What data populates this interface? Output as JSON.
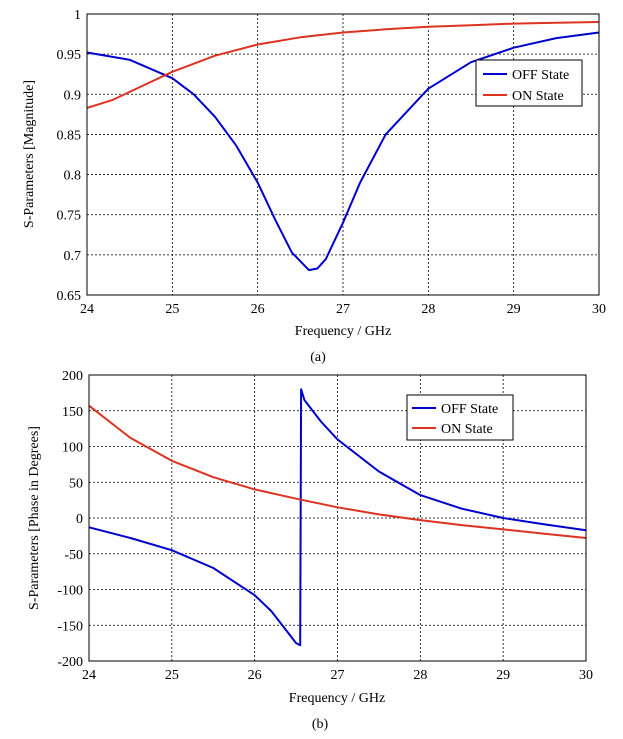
{
  "chart_data": [
    {
      "type": "line",
      "caption": "(a)",
      "xlabel": "Frequency / GHz",
      "ylabel": "S-Parameters [Magnitude]",
      "xlim": [
        24,
        30
      ],
      "ylim": [
        0.65,
        1
      ],
      "xticks": [
        "24",
        "25",
        "26",
        "27",
        "28",
        "29",
        "30"
      ],
      "yticks": [
        "0.65",
        "0.7",
        "0.75",
        "0.8",
        "0.85",
        "0.9",
        "0.95",
        "1"
      ],
      "grid": true,
      "legend_position": "top-right",
      "series": [
        {
          "name": "OFF State",
          "color": "#0000cc",
          "x": [
            24,
            24.5,
            25,
            25.25,
            25.5,
            25.75,
            26,
            26.2,
            26.4,
            26.6,
            26.7,
            26.8,
            27,
            27.2,
            27.5,
            28,
            28.5,
            29,
            29.5,
            30
          ],
          "y": [
            0.952,
            0.943,
            0.92,
            0.9,
            0.872,
            0.836,
            0.79,
            0.745,
            0.703,
            0.681,
            0.683,
            0.695,
            0.74,
            0.79,
            0.85,
            0.907,
            0.94,
            0.958,
            0.97,
            0.977
          ]
        },
        {
          "name": "ON State",
          "color": "#dd3322",
          "x": [
            24,
            24.3,
            24.6,
            25,
            25.5,
            26,
            26.5,
            27,
            27.5,
            28,
            28.5,
            29,
            29.5,
            30
          ],
          "y": [
            0.883,
            0.893,
            0.908,
            0.928,
            0.948,
            0.962,
            0.971,
            0.977,
            0.981,
            0.984,
            0.986,
            0.988,
            0.989,
            0.99
          ]
        }
      ]
    },
    {
      "type": "line",
      "caption": "(b)",
      "xlabel": "Frequency / GHz",
      "ylabel": "S-Parameters [Phase in Degrees]",
      "xlim": [
        24,
        30
      ],
      "ylim": [
        -200,
        200
      ],
      "xticks": [
        "24",
        "25",
        "26",
        "27",
        "28",
        "29",
        "30"
      ],
      "yticks": [
        "-200",
        "-150",
        "-100",
        "-50",
        "0",
        "50",
        "100",
        "150",
        "200"
      ],
      "grid": true,
      "legend_position": "top-right",
      "series": [
        {
          "name": "OFF State",
          "color": "#0000cc",
          "x": [
            24,
            24.5,
            25,
            25.5,
            26,
            26.2,
            26.4,
            26.5,
            26.55,
            26.56,
            26.6,
            26.8,
            27,
            27.5,
            28,
            28.5,
            29,
            29.5,
            30
          ],
          "y": [
            -13,
            -28,
            -45,
            -70,
            -108,
            -130,
            -160,
            -175,
            -178,
            180,
            165,
            135,
            110,
            65,
            32,
            13,
            0,
            -9,
            -17
          ]
        },
        {
          "name": "ON State",
          "color": "#dd3322",
          "x": [
            24,
            24.5,
            25,
            25.5,
            26,
            26.5,
            27,
            27.5,
            28,
            28.5,
            29,
            29.5,
            30
          ],
          "y": [
            157,
            112,
            80,
            57,
            40,
            27,
            15,
            5,
            -3,
            -10,
            -16,
            -22,
            -28
          ]
        }
      ]
    }
  ]
}
